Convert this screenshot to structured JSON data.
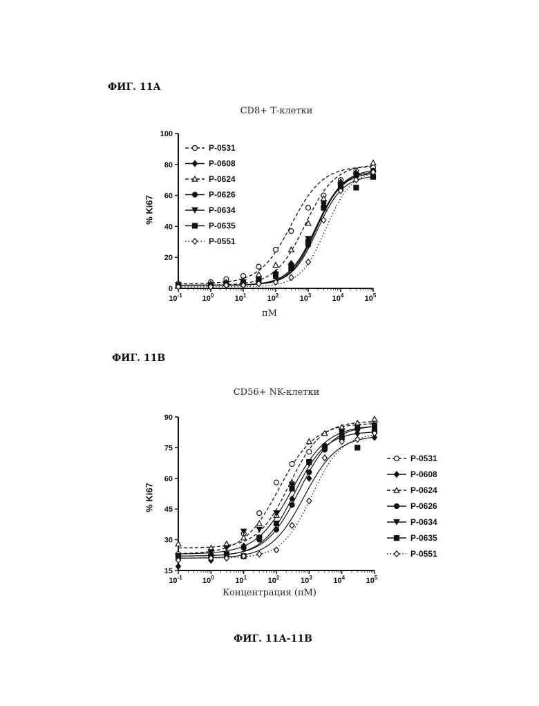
{
  "figure_a": {
    "label": "ФИГ. 11А"
  },
  "figure_b": {
    "label": "ФИГ. 11В"
  },
  "footer": {
    "label": "ФИГ. 11А-11В"
  },
  "chart_data": [
    {
      "type": "line",
      "title": "CD8+ Т-клетки",
      "xlabel": "пМ",
      "ylabel": "% Ki67",
      "xscale": "log",
      "xlim": [
        0.1,
        100000
      ],
      "ylim": [
        0,
        100
      ],
      "yticks": [
        "0",
        "20",
        "40",
        "60",
        "80",
        "100"
      ],
      "xticks": [
        [
          "10",
          "-1"
        ],
        [
          "10",
          "0"
        ],
        [
          "10",
          "1"
        ],
        [
          "10",
          "2"
        ],
        [
          "10",
          "3"
        ],
        [
          "10",
          "4"
        ],
        [
          "10",
          "5"
        ]
      ],
      "legend_position": "top-left",
      "x": [
        0.1,
        1,
        3,
        10,
        30,
        100,
        300,
        1000,
        3000,
        10000,
        30000,
        100000
      ],
      "series": [
        {
          "name": "P-0531",
          "marker": "circle-open",
          "line": "dashed",
          "values": [
            3,
            4,
            6,
            8,
            14,
            25,
            37,
            52,
            60,
            70,
            76,
            78
          ],
          "curve": {
            "bottom": 3,
            "top": 79,
            "ec50": 300,
            "hill": 0.9
          }
        },
        {
          "name": "P-0608",
          "marker": "diamond-filled",
          "line": "solid",
          "values": [
            2,
            2,
            3,
            4,
            7,
            10,
            16,
            30,
            55,
            67,
            72,
            75
          ],
          "curve": {
            "bottom": 2,
            "top": 76,
            "ec50": 1700,
            "hill": 1.05
          }
        },
        {
          "name": "P-0624",
          "marker": "triangle-open",
          "line": "dashed",
          "values": [
            2,
            3,
            4,
            5,
            9,
            15,
            25,
            42,
            58,
            69,
            75,
            81
          ],
          "curve": {
            "bottom": 2,
            "top": 80,
            "ec50": 800,
            "hill": 0.95
          }
        },
        {
          "name": "P-0626",
          "marker": "circle-filled",
          "line": "solid",
          "values": [
            2,
            2,
            3,
            4,
            6,
            9,
            15,
            28,
            53,
            68,
            74,
            76
          ],
          "curve": {
            "bottom": 2,
            "top": 77,
            "ec50": 1800,
            "hill": 1.05
          }
        },
        {
          "name": "P-0634",
          "marker": "triangle-down-filled",
          "line": "solid",
          "values": [
            2,
            2,
            3,
            4,
            6,
            9,
            14,
            32,
            55,
            67,
            73,
            74
          ],
          "curve": {
            "bottom": 2,
            "top": 75,
            "ec50": 1800,
            "hill": 1.1
          }
        },
        {
          "name": "P-0635",
          "marker": "square-filled",
          "line": "solid",
          "values": [
            2,
            2,
            3,
            3,
            5,
            8,
            13,
            30,
            52,
            65,
            65,
            72
          ],
          "curve": {
            "bottom": 2,
            "top": 73,
            "ec50": 1900,
            "hill": 1.1
          }
        },
        {
          "name": "P-0551",
          "marker": "diamond-open",
          "line": "dotted",
          "values": [
            1,
            1,
            2,
            2,
            3,
            4,
            7,
            17,
            44,
            63,
            70,
            75
          ],
          "curve": {
            "bottom": 1,
            "top": 76,
            "ec50": 3500,
            "hill": 1.1
          }
        }
      ]
    },
    {
      "type": "line",
      "title": "CD56+ NK-клетки",
      "xlabel": "Концентрация (пМ)",
      "ylabel": "% Ki67",
      "xscale": "log",
      "xlim": [
        0.1,
        100000
      ],
      "ylim": [
        15,
        90
      ],
      "yticks": [
        "15",
        "30",
        "45",
        "60",
        "75",
        "90"
      ],
      "xticks": [
        [
          "10",
          "-1"
        ],
        [
          "10",
          "0"
        ],
        [
          "10",
          "1"
        ],
        [
          "10",
          "2"
        ],
        [
          "10",
          "3"
        ],
        [
          "10",
          "4"
        ],
        [
          "10",
          "5"
        ]
      ],
      "legend_position": "right",
      "x": [
        0.1,
        1,
        3,
        10,
        30,
        100,
        300,
        1000,
        3000,
        10000,
        30000,
        100000
      ],
      "series": [
        {
          "name": "P-0531",
          "marker": "circle-open",
          "line": "dashed",
          "values": [
            23,
            25,
            27,
            33,
            43,
            58,
            67,
            73,
            76,
            83,
            85,
            86
          ],
          "curve": {
            "bottom": 23,
            "top": 87,
            "ec50": 120,
            "hill": 0.8
          }
        },
        {
          "name": "P-0608",
          "marker": "diamond-filled",
          "line": "solid",
          "values": [
            17,
            20,
            22,
            27,
            31,
            35,
            50,
            60,
            76,
            80,
            82,
            80
          ],
          "curve": {
            "bottom": 21,
            "top": 81,
            "ec50": 700,
            "hill": 0.85
          }
        },
        {
          "name": "P-0624",
          "marker": "triangle-open",
          "line": "dashed",
          "values": [
            28,
            26,
            28,
            31,
            38,
            42,
            58,
            78,
            82,
            85,
            87,
            89
          ],
          "curve": {
            "bottom": 26,
            "top": 88,
            "ec50": 250,
            "hill": 0.9
          }
        },
        {
          "name": "P-0626",
          "marker": "circle-filled",
          "line": "solid",
          "values": [
            21,
            22,
            23,
            26,
            30,
            35,
            47,
            63,
            74,
            82,
            84,
            85
          ],
          "curve": {
            "bottom": 22,
            "top": 86,
            "ec50": 500,
            "hill": 0.85
          }
        },
        {
          "name": "P-0634",
          "marker": "triangle-down-filled",
          "line": "solid",
          "values": [
            22,
            24,
            26,
            34,
            35,
            43,
            57,
            67,
            74,
            83,
            85,
            86
          ],
          "curve": {
            "bottom": 23,
            "top": 86,
            "ec50": 300,
            "hill": 0.8
          }
        },
        {
          "name": "P-0635",
          "marker": "square-filled",
          "line": "solid",
          "values": [
            22,
            22,
            23,
            22,
            31,
            38,
            55,
            68,
            75,
            80,
            75,
            83
          ],
          "curve": {
            "bottom": 22,
            "top": 83,
            "ec50": 350,
            "hill": 0.9
          }
        },
        {
          "name": "P-0551",
          "marker": "diamond-open",
          "line": "dotted",
          "values": [
            20,
            21,
            21,
            22,
            23,
            25,
            37,
            49,
            70,
            78,
            79,
            82
          ],
          "curve": {
            "bottom": 21,
            "top": 82,
            "ec50": 1200,
            "hill": 0.95
          }
        }
      ]
    }
  ]
}
